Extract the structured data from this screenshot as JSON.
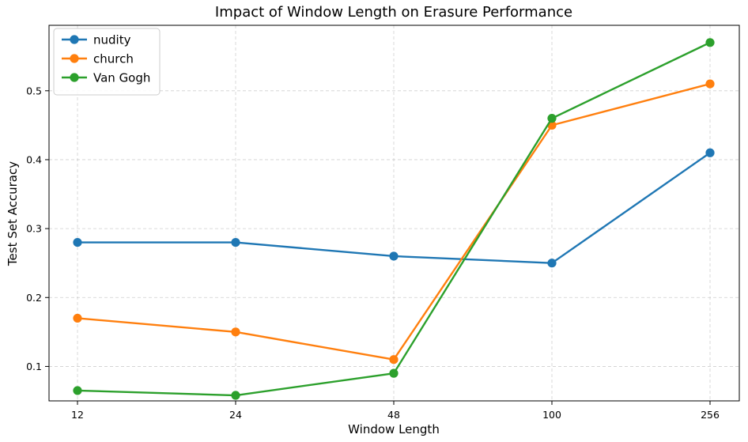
{
  "chart_data": {
    "type": "line",
    "title": "Impact of Window Length on Erasure Performance",
    "xlabel": "Window Length",
    "ylabel": "Test Set Accuracy",
    "categories": [
      "12",
      "24",
      "48",
      "100",
      "256"
    ],
    "ylim": [
      0.05,
      0.595
    ],
    "yticks": [
      "0.1",
      "0.2",
      "0.3",
      "0.4",
      "0.5"
    ],
    "grid": true,
    "legend_position": "top-left",
    "series": [
      {
        "name": "nudity",
        "color": "#1f77b4",
        "values": [
          0.28,
          0.28,
          0.26,
          0.25,
          0.41
        ]
      },
      {
        "name": "church",
        "color": "#ff7f0e",
        "values": [
          0.17,
          0.15,
          0.11,
          0.45,
          0.51
        ]
      },
      {
        "name": "Van Gogh",
        "color": "#2ca02c",
        "values": [
          0.065,
          0.058,
          0.09,
          0.46,
          0.57
        ]
      }
    ]
  }
}
